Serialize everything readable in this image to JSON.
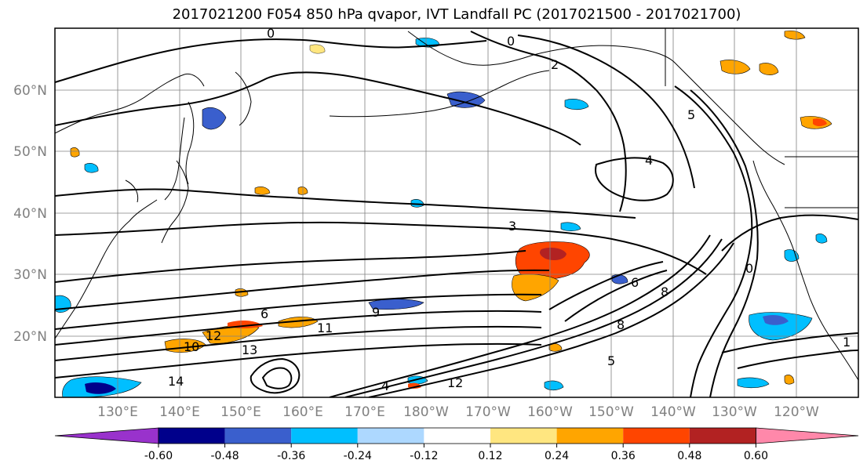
{
  "title": "2017021200 F054 850 hPa qvapor, IVT Landfall PC (2017021500 - 2017021700)",
  "map": {
    "lat_labels": [
      "60°N",
      "50°N",
      "40°N",
      "30°N",
      "20°N"
    ],
    "lon_labels": [
      "130°E",
      "140°E",
      "150°E",
      "160°E",
      "170°E",
      "180°W",
      "170°W",
      "160°W",
      "150°W",
      "140°W",
      "130°W",
      "120°W"
    ],
    "contour_labels": [
      "0",
      "0",
      "2",
      "5",
      "4",
      "3",
      "0",
      "9",
      "6",
      "11",
      "10",
      "12",
      "13",
      "14",
      "8",
      "5",
      "6",
      "8",
      "4",
      "12",
      "1"
    ],
    "colors": {
      "coast": "#000000",
      "grid": "#808080",
      "contour": "#000000"
    }
  },
  "colorbar": {
    "tick_labels": [
      "-0.60",
      "-0.48",
      "-0.36",
      "-0.24",
      "-0.12",
      "0.12",
      "0.24",
      "0.36",
      "0.48",
      "0.60"
    ],
    "colors": [
      "#9932cc",
      "#00008b",
      "#3a5fcd",
      "#00bfff",
      "#add8ff",
      "#ffffff",
      "#ffe680",
      "#ffa500",
      "#ff4500",
      "#b22222",
      "#ff88aa"
    ]
  }
}
